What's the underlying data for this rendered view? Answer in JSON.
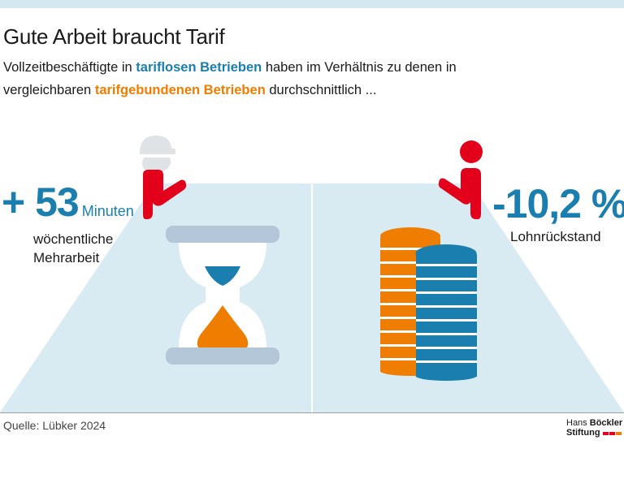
{
  "title": "Gute Arbeit braucht Tarif",
  "subtitle": {
    "part1": "Vollzeitbeschäftigte in ",
    "highlight_blue": "tariflosen Betrieben",
    "part2": " haben im Verhältnis zu denen in vergleichbaren ",
    "highlight_orange": "tarifgebundenen Betrieben",
    "part3": " durchschnittlich ..."
  },
  "left_stat": {
    "value": "+ 53",
    "unit": "Minuten",
    "description_line1": "wöchentliche",
    "description_line2": "Mehrarbeit",
    "icon": "hourglass-icon"
  },
  "right_stat": {
    "value": "-10,2 %",
    "description": "Lohnrückstand",
    "icon": "coin-stack-icon"
  },
  "source": "Quelle: Lübker 2024",
  "logo": {
    "line1_regular": "Hans ",
    "line1_bold": "Böckler",
    "line2_bold": "Stiftung"
  },
  "colors": {
    "blue": "#1a7fae",
    "orange": "#ef7d00",
    "red": "#e2001a",
    "light_blue": "#d3e8f0",
    "grey_blue": "#b3c7d9"
  }
}
